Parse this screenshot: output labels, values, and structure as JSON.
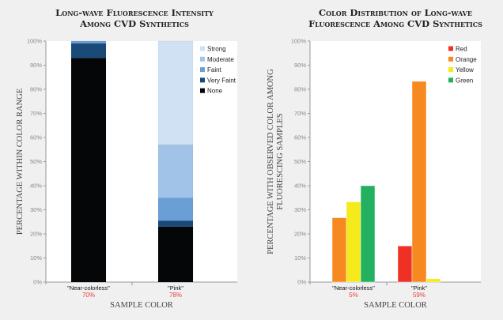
{
  "chart_data": [
    {
      "type": "bar",
      "stacked": true,
      "title": [
        "Long-wave Fluorescence Intensity",
        "Among CVD Synthetics"
      ],
      "xlabel": "SAMPLE COLOR",
      "ylabel": "PERCENTAGE WITHIN COLOR RANGE",
      "ylim": [
        0,
        100
      ],
      "yticks": [
        "0%",
        "10%",
        "20%",
        "30%",
        "40%",
        "50%",
        "60%",
        "70%",
        "80%",
        "90%",
        "100%"
      ],
      "categories": [
        "\"Near-colorless\"",
        "\"Pink\""
      ],
      "category_percentages": [
        "70%",
        "78%"
      ],
      "legend_position": "top-right",
      "series": [
        {
          "name": "None",
          "color": "#050608",
          "values": [
            93,
            23
          ]
        },
        {
          "name": "Very Faint",
          "color": "#1a4a78",
          "values": [
            6,
            2.5
          ]
        },
        {
          "name": "Faint",
          "color": "#6a9fd6",
          "values": [
            1,
            9.5
          ]
        },
        {
          "name": "Moderate",
          "color": "#a1c3e8",
          "values": [
            0,
            22
          ]
        },
        {
          "name": "Strong",
          "color": "#d0e1f4",
          "values": [
            0,
            43
          ]
        }
      ]
    },
    {
      "type": "bar",
      "stacked": false,
      "title": [
        "Color Distribution of Long-wave",
        "Fluorescence Among CVD Synthetics"
      ],
      "xlabel": "SAMPLE COLOR",
      "ylabel": [
        "PERCENTAGE WITH OBSERVED COLOR AMONG",
        "FLUORESCING SAMPLES"
      ],
      "ylim": [
        0,
        100
      ],
      "yticks": [
        "0%",
        "10%",
        "20%",
        "30%",
        "40%",
        "50%",
        "60%",
        "70%",
        "80%",
        "90%",
        "100%"
      ],
      "categories": [
        "\"Near-colorless\"",
        "\"Pink\""
      ],
      "category_percentages": [
        "5%",
        "59%"
      ],
      "legend_position": "top-right",
      "series": [
        {
          "name": "Red",
          "color": "#ee3124",
          "values": [
            0,
            15
          ]
        },
        {
          "name": "Orange",
          "color": "#f6891f",
          "values": [
            26.7,
            83.3
          ]
        },
        {
          "name": "Yellow",
          "color": "#f4ea1c",
          "values": [
            33.3,
            1.4
          ]
        },
        {
          "name": "Green",
          "color": "#24b15f",
          "values": [
            40,
            0
          ]
        }
      ]
    }
  ]
}
